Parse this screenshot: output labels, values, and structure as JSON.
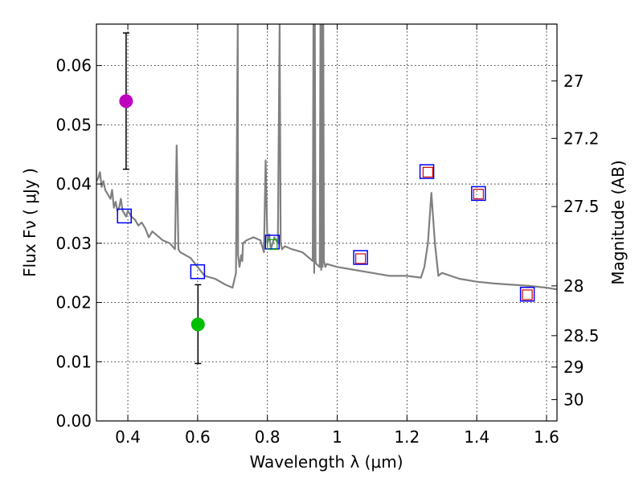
{
  "chart_data": {
    "type": "scatter",
    "xlabel": "Wavelength  λ (μm)",
    "ylabel_left": "Flux  Fν  ( μJy )",
    "ylabel_right": "Magnitude (AB)",
    "xlim": [
      0.31,
      1.63
    ],
    "ylim": [
      0.0,
      0.067
    ],
    "grid": true,
    "x_ticks": [
      {
        "value": 0.4,
        "label": "0.4"
      },
      {
        "value": 0.6,
        "label": "0.6"
      },
      {
        "value": 0.8,
        "label": "0.8"
      },
      {
        "value": 1.0,
        "label": "1"
      },
      {
        "value": 1.2,
        "label": "1.2"
      },
      {
        "value": 1.4,
        "label": "1.4"
      },
      {
        "value": 1.6,
        "label": "1.6"
      }
    ],
    "y_ticks": [
      {
        "value": 0.0,
        "label": "0.00"
      },
      {
        "value": 0.01,
        "label": "0.01"
      },
      {
        "value": 0.02,
        "label": "0.02"
      },
      {
        "value": 0.03,
        "label": "0.03"
      },
      {
        "value": 0.04,
        "label": "0.04"
      },
      {
        "value": 0.05,
        "label": "0.05"
      },
      {
        "value": 0.06,
        "label": "0.06"
      }
    ],
    "right_ticks": [
      {
        "flux": 0.0574,
        "label": "27"
      },
      {
        "flux": 0.0477,
        "label": "27.2"
      },
      {
        "flux": 0.0362,
        "label": "27.5"
      },
      {
        "flux": 0.0228,
        "label": "28"
      },
      {
        "flux": 0.0144,
        "label": "28.5"
      },
      {
        "flux": 0.0091,
        "label": "29"
      },
      {
        "flux": 0.0036,
        "label": "30"
      }
    ],
    "series": [
      {
        "name": "SED model",
        "kind": "line",
        "color": "#808080",
        "x": [
          0.31,
          0.315,
          0.32,
          0.325,
          0.33,
          0.335,
          0.34,
          0.345,
          0.35,
          0.355,
          0.36,
          0.365,
          0.37,
          0.375,
          0.38,
          0.385,
          0.39,
          0.395,
          0.4,
          0.41,
          0.42,
          0.43,
          0.44,
          0.45,
          0.46,
          0.47,
          0.48,
          0.5,
          0.52,
          0.535,
          0.54,
          0.545,
          0.55,
          0.58,
          0.6,
          0.62,
          0.65,
          0.68,
          0.7,
          0.71,
          0.715,
          0.716,
          0.72,
          0.725,
          0.728,
          0.73,
          0.74,
          0.76,
          0.78,
          0.79,
          0.795,
          0.8,
          0.805,
          0.81,
          0.82,
          0.83,
          0.835,
          0.838,
          0.842,
          0.85,
          0.87,
          0.9,
          0.92,
          0.93,
          0.932,
          0.934,
          0.936,
          0.938,
          0.94,
          0.95,
          0.952,
          0.954,
          0.956,
          0.958,
          0.96,
          0.962,
          0.964,
          0.966,
          0.97,
          1.0,
          1.05,
          1.1,
          1.15,
          1.2,
          1.24,
          1.25,
          1.26,
          1.27,
          1.28,
          1.29,
          1.3,
          1.35,
          1.4,
          1.45,
          1.5,
          1.55,
          1.6,
          1.63
        ],
        "y": [
          0.0405,
          0.041,
          0.042,
          0.0395,
          0.0405,
          0.039,
          0.0385,
          0.038,
          0.0375,
          0.039,
          0.036,
          0.037,
          0.0355,
          0.036,
          0.0375,
          0.0355,
          0.035,
          0.0345,
          0.0355,
          0.0345,
          0.034,
          0.033,
          0.0335,
          0.0325,
          0.031,
          0.032,
          0.0315,
          0.0305,
          0.03,
          0.029,
          0.0465,
          0.029,
          0.0285,
          0.0275,
          0.026,
          0.0245,
          0.024,
          0.023,
          0.0225,
          0.025,
          0.067,
          0.028,
          0.026,
          0.028,
          0.027,
          0.03,
          0.0305,
          0.031,
          0.0305,
          0.0285,
          0.044,
          0.03,
          0.0315,
          0.029,
          0.031,
          0.03,
          0.067,
          0.03,
          0.029,
          0.0295,
          0.029,
          0.0285,
          0.0275,
          0.027,
          0.067,
          0.025,
          0.067,
          0.027,
          0.0265,
          0.026,
          0.067,
          0.0255,
          0.067,
          0.026,
          0.067,
          0.027,
          0.0265,
          0.026,
          0.0265,
          0.026,
          0.0255,
          0.025,
          0.0245,
          0.0245,
          0.0242,
          0.026,
          0.03,
          0.0385,
          0.03,
          0.0245,
          0.025,
          0.024,
          0.0235,
          0.0232,
          0.023,
          0.0228,
          0.0225,
          0.0222
        ]
      },
      {
        "name": "observed filled circles",
        "kind": "points",
        "points": [
          {
            "x": 0.395,
            "y": 0.054,
            "yerr_low": 0.0425,
            "yerr_high": 0.0655,
            "color": "#bf00bf"
          },
          {
            "x": 0.601,
            "y": 0.0163,
            "yerr_low": 0.0097,
            "yerr_high": 0.023,
            "color": "#00bf00"
          }
        ]
      },
      {
        "name": "model photometry (large blue squares)",
        "kind": "squares",
        "color": "#0000ff",
        "points": [
          {
            "x": 0.39,
            "y": 0.0346
          },
          {
            "x": 0.6,
            "y": 0.0252
          },
          {
            "x": 0.814,
            "y": 0.0302
          },
          {
            "x": 1.067,
            "y": 0.0276
          },
          {
            "x": 1.257,
            "y": 0.0421
          },
          {
            "x": 1.405,
            "y": 0.0384
          },
          {
            "x": 1.545,
            "y": 0.0214
          }
        ]
      },
      {
        "name": "model photometry (small red squares)",
        "kind": "small-squares",
        "color": "#d00000",
        "points": [
          {
            "x": 1.067,
            "y": 0.0274
          },
          {
            "x": 1.26,
            "y": 0.042
          },
          {
            "x": 1.405,
            "y": 0.0383
          },
          {
            "x": 1.545,
            "y": 0.0213
          }
        ]
      },
      {
        "name": "model photometry (small green marker)",
        "kind": "small-squares",
        "color": "#00aa00",
        "points": [
          {
            "x": 0.814,
            "y": 0.0298
          }
        ]
      }
    ]
  }
}
